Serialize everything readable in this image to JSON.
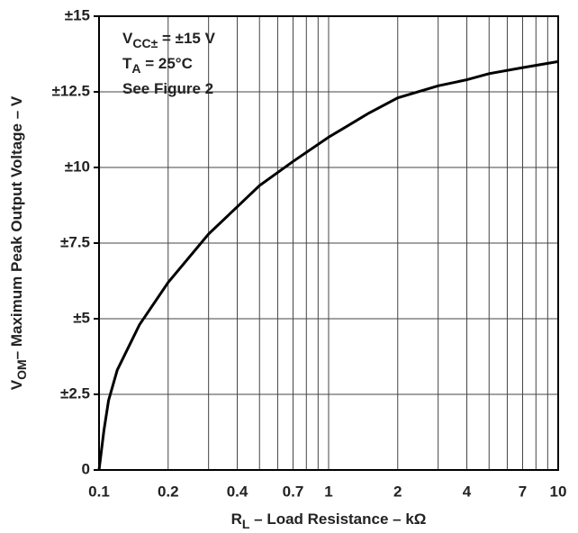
{
  "chart_data": {
    "type": "line",
    "x_label": {
      "main": "R",
      "sub": "L",
      "rest": " – Load Resistance – kΩ"
    },
    "y_label": {
      "main": "V",
      "sub": "OM",
      "rest": "– Maximum Peak Output Voltage – V"
    },
    "annotations": [
      {
        "main": "V",
        "sub": "CC±",
        "rest": " = ±15 V"
      },
      {
        "main": "T",
        "sub": "A",
        "rest": " = 25°C"
      },
      {
        "main": "See Figure 2"
      }
    ],
    "xscale": "log",
    "xlim": [
      0.1,
      10
    ],
    "ylim": [
      0,
      15
    ],
    "xticks": [
      0.1,
      0.2,
      0.4,
      0.7,
      1,
      2,
      4,
      7,
      10
    ],
    "x_minor_grid": [
      0.3,
      0.5,
      0.6,
      0.8,
      0.9,
      3,
      5,
      6,
      8,
      9
    ],
    "yticks": [
      0,
      {
        "value": 2.5,
        "label": "±2.5"
      },
      {
        "value": 5,
        "label": "±5"
      },
      {
        "value": 7.5,
        "label": "±7.5"
      },
      {
        "value": 10,
        "label": "±10"
      },
      {
        "value": 12.5,
        "label": "±12.5"
      },
      {
        "value": 15,
        "label": "±15"
      }
    ],
    "grid": true,
    "series": [
      {
        "color": "#000000",
        "x": [
          0.1,
          0.105,
          0.11,
          0.12,
          0.15,
          0.2,
          0.3,
          0.4,
          0.5,
          0.7,
          1,
          1.5,
          2,
          3,
          4,
          5,
          7,
          10
        ],
        "values": [
          0,
          1.3,
          2.3,
          3.3,
          4.8,
          6.2,
          7.8,
          8.7,
          9.4,
          10.2,
          11.0,
          11.8,
          12.3,
          12.7,
          12.9,
          13.1,
          13.3,
          13.5
        ]
      }
    ]
  }
}
